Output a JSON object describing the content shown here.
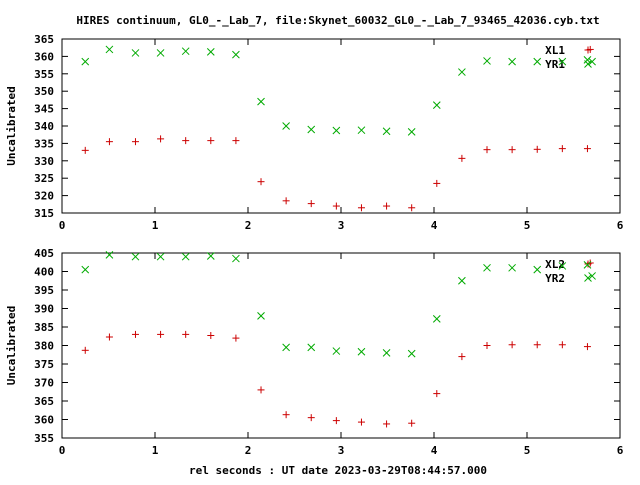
{
  "title": "HIRES continuum, GL0_-_Lab_7, file:Skynet_60032_GL0_-_Lab_7_93465_42036.cyb.txt",
  "xlabel": "rel seconds : UT date 2023-03-29T08:44:57.000",
  "colors": {
    "red_series": "#cc0000",
    "green_series": "#00aa00",
    "axes": "#000000"
  },
  "chart_data": [
    {
      "type": "scatter",
      "ylabel": "Uncalibrated",
      "xlim": [
        0,
        6
      ],
      "ylim": [
        315,
        365
      ],
      "xticks": [
        0,
        1,
        2,
        3,
        4,
        5,
        6
      ],
      "yticks": [
        315,
        320,
        325,
        330,
        335,
        340,
        345,
        350,
        355,
        360,
        365
      ],
      "legend_position": "top-right",
      "series": [
        {
          "name": "XL1",
          "marker": "plus",
          "color": "#cc0000",
          "x": [
            0.25,
            0.51,
            0.79,
            1.06,
            1.33,
            1.6,
            1.87,
            2.14,
            2.41,
            2.68,
            2.95,
            3.22,
            3.49,
            3.76,
            4.03,
            4.3,
            4.57,
            4.84,
            5.11,
            5.38,
            5.65,
            5.68
          ],
          "y": [
            333.0,
            335.5,
            335.5,
            336.3,
            335.8,
            335.8,
            335.8,
            324.0,
            318.5,
            317.7,
            317.0,
            316.5,
            317.0,
            316.5,
            323.5,
            330.7,
            333.2,
            333.2,
            333.3,
            333.5,
            333.5,
            362.0
          ]
        },
        {
          "name": "YR1",
          "marker": "cross",
          "color": "#00aa00",
          "x": [
            0.25,
            0.51,
            0.79,
            1.06,
            1.33,
            1.6,
            1.87,
            2.14,
            2.41,
            2.68,
            2.95,
            3.22,
            3.49,
            3.76,
            4.03,
            4.3,
            4.57,
            4.84,
            5.11,
            5.38,
            5.65,
            5.7
          ],
          "y": [
            358.5,
            362.0,
            361.0,
            361.0,
            361.5,
            361.3,
            360.5,
            347.0,
            340.0,
            339.0,
            338.7,
            338.8,
            338.5,
            338.3,
            346.0,
            355.5,
            358.7,
            358.5,
            358.5,
            358.5,
            359.0,
            358.5
          ]
        }
      ]
    },
    {
      "type": "scatter",
      "ylabel": "Uncalibrated",
      "xlim": [
        0,
        6
      ],
      "ylim": [
        355,
        405
      ],
      "xticks": [
        0,
        1,
        2,
        3,
        4,
        5,
        6
      ],
      "yticks": [
        355,
        360,
        365,
        370,
        375,
        380,
        385,
        390,
        395,
        400,
        405
      ],
      "legend_position": "top-right",
      "series": [
        {
          "name": "XL2",
          "marker": "plus",
          "color": "#cc0000",
          "x": [
            0.25,
            0.51,
            0.79,
            1.06,
            1.33,
            1.6,
            1.87,
            2.14,
            2.41,
            2.68,
            2.95,
            3.22,
            3.49,
            3.76,
            4.03,
            4.3,
            4.57,
            4.84,
            5.11,
            5.38,
            5.65,
            5.68
          ],
          "y": [
            378.7,
            382.3,
            383.0,
            383.0,
            383.0,
            382.7,
            382.0,
            368.0,
            361.3,
            360.5,
            359.7,
            359.3,
            358.8,
            359.0,
            367.0,
            377.0,
            380.0,
            380.2,
            380.2,
            380.2,
            379.7,
            402.3
          ]
        },
        {
          "name": "YR2",
          "marker": "cross",
          "color": "#00aa00",
          "x": [
            0.25,
            0.51,
            0.79,
            1.06,
            1.33,
            1.6,
            1.87,
            2.14,
            2.41,
            2.68,
            2.95,
            3.22,
            3.49,
            3.76,
            4.03,
            4.3,
            4.57,
            4.84,
            5.11,
            5.38,
            5.65,
            5.7
          ],
          "y": [
            400.5,
            404.5,
            404.0,
            404.0,
            404.0,
            404.2,
            403.5,
            388.0,
            379.5,
            379.5,
            378.5,
            378.3,
            378.0,
            377.8,
            387.2,
            397.5,
            401.0,
            401.0,
            400.5,
            401.5,
            401.8,
            398.8
          ]
        }
      ]
    }
  ]
}
